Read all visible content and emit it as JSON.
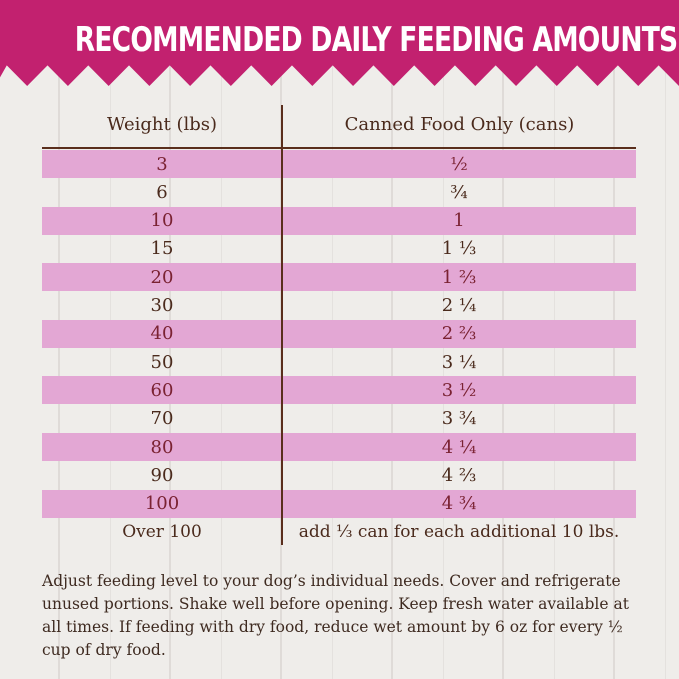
{
  "title": "RECOMMENDED DAILY FEEDING AMOUNTS:",
  "table": {
    "headers": [
      "Weight (lbs)",
      "Canned Food Only (cans)"
    ],
    "rows": [
      [
        "3",
        "½"
      ],
      [
        "6",
        "¾"
      ],
      [
        "10",
        "1"
      ],
      [
        "15",
        "1 ⅓"
      ],
      [
        "20",
        "1 ⅔"
      ],
      [
        "30",
        "2 ¼"
      ],
      [
        "40",
        "2 ⅔"
      ],
      [
        "50",
        "3 ¼"
      ],
      [
        "60",
        "3 ½"
      ],
      [
        "70",
        "3 ¾"
      ],
      [
        "80",
        "4 ¼"
      ],
      [
        "90",
        "4 ⅔"
      ],
      [
        "100",
        "4 ¾"
      ],
      [
        "Over 100",
        "add ⅓ can for each additional 10 lbs."
      ]
    ]
  },
  "note": "Adjust feeding level to your dog’s individual needs. Cover and refrigerate unused portions. Shake well before opening. Keep fresh water available at all times. If feeding with dry food, reduce wet amount by 6 oz for every ½ cup of dry food.",
  "colors": {
    "banner": "#c2216f",
    "stripe": "#e3a7d4",
    "text": "#4a2a1c"
  }
}
